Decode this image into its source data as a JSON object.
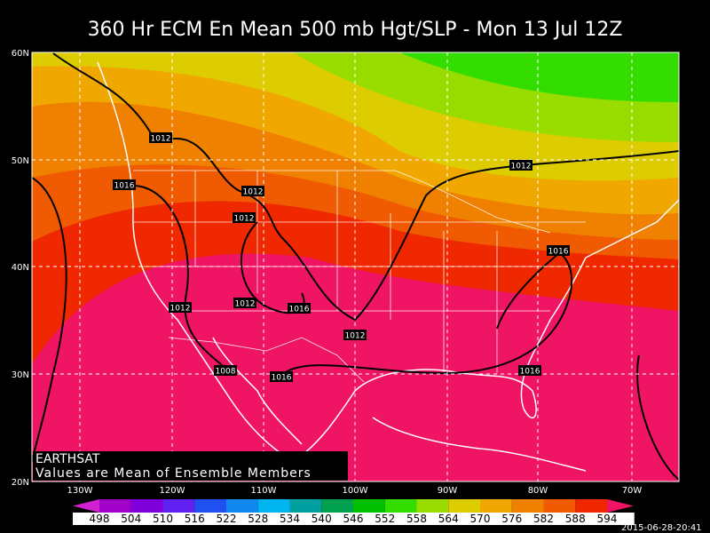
{
  "title": "360 Hr ECM En Mean 500 mb Hgt/SLP - Mon 13 Jul 12Z",
  "latitude_labels": [
    "60N",
    "50N",
    "40N",
    "30N",
    "20N"
  ],
  "longitude_labels": [
    "130W",
    "120W",
    "110W",
    "100W",
    "90W",
    "80W",
    "70W"
  ],
  "isobar_labels": [
    1012,
    1016,
    1012,
    1012,
    1012,
    1012,
    1016,
    1012,
    1008,
    1016,
    1012,
    1016,
    1016
  ],
  "credit": "EARTHSAT",
  "note": "Values are Mean of Ensemble Members",
  "colorbar": {
    "values": [
      498,
      504,
      510,
      516,
      522,
      528,
      534,
      540,
      546,
      552,
      558,
      564,
      570,
      576,
      582,
      588,
      594
    ],
    "colors": [
      "#d020d0",
      "#a000c8",
      "#8000dc",
      "#6020f0",
      "#2050f0",
      "#1088f0",
      "#00b4f0",
      "#00a0a0",
      "#00a050",
      "#00c000",
      "#33dd00",
      "#99dd00",
      "#ddcc00",
      "#f0a800",
      "#f08000",
      "#f05a00",
      "#f02800",
      "#f01464"
    ]
  },
  "timestamp": "2015-06-28-20:41"
}
